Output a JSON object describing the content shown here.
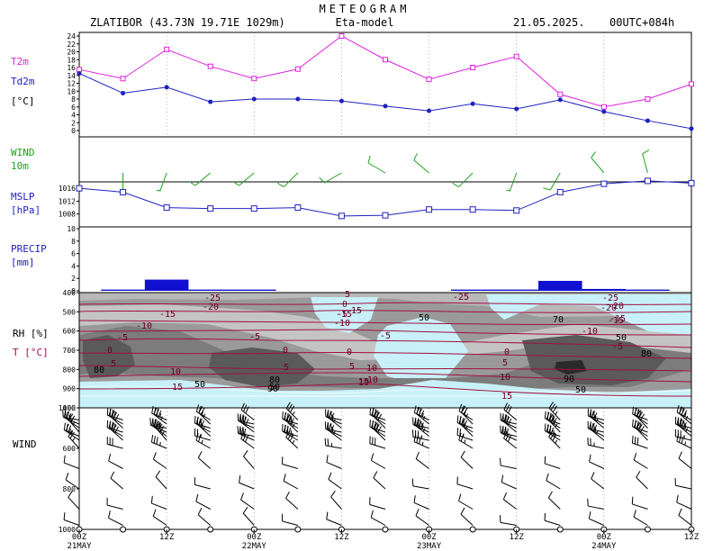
{
  "header": {
    "title": "METEOGRAM",
    "station": "ZLATIBOR (43.73N 19.71E  1029m)",
    "model": "Eta-model",
    "date": "21.05.2025.",
    "run": "00UTC+084h"
  },
  "labels": {
    "t2m": "T2m",
    "td2m": "Td2m",
    "t_unit": "[°C]",
    "wind": "WIND",
    "wind_unit": "10m",
    "mslp": "MSLP",
    "mslp_unit": "[hPa]",
    "precip": "PRECIP",
    "precip_unit": "[mm]",
    "rh": "RH [%]",
    "t": "T [°C]",
    "wind_profile": "WIND"
  },
  "colors": {
    "t2m": "#e020e0",
    "td2m": "#2020c0",
    "wind_barb": "#20a020",
    "mslp": "#2020c0",
    "precip": "#1010d0",
    "temp_contour": "#a01040",
    "rh_contour": "#606060",
    "moist_fill": "#c8f0f8"
  },
  "chart_data": [
    {
      "type": "line",
      "name": "temperature",
      "x": [
        0,
        6,
        12,
        18,
        24,
        30,
        36,
        42,
        48,
        54,
        60,
        66,
        72,
        78,
        84
      ],
      "ylim": [
        0,
        24
      ],
      "yticks": [
        0,
        2,
        4,
        6,
        8,
        10,
        12,
        14,
        16,
        18,
        20,
        22,
        24
      ],
      "series": [
        {
          "name": "T2m",
          "values": [
            15.5,
            13.2,
            20.6,
            16.3,
            13.2,
            15.6,
            24.0,
            18.0,
            13.0,
            16.0,
            18.8,
            9.2,
            6.0,
            8.0,
            11.8
          ]
        },
        {
          "name": "Td2m",
          "values": [
            14.5,
            9.5,
            11.0,
            7.3,
            8.0,
            8.0,
            7.5,
            6.2,
            5.0,
            6.8,
            5.5,
            7.8,
            4.8,
            2.5,
            0.5
          ]
        }
      ]
    },
    {
      "type": "wind_barbs",
      "name": "wind10m",
      "x": [
        6,
        12,
        18,
        24,
        30,
        36,
        42,
        48,
        54,
        60,
        66,
        72,
        78
      ],
      "direction_deg": [
        180,
        200,
        230,
        230,
        225,
        240,
        300,
        310,
        225,
        200,
        210,
        320,
        345
      ],
      "speed_kt": [
        5,
        5,
        10,
        10,
        10,
        10,
        10,
        10,
        10,
        5,
        10,
        10,
        10
      ]
    },
    {
      "type": "line",
      "name": "mslp",
      "x": [
        0,
        6,
        12,
        18,
        24,
        30,
        36,
        42,
        48,
        54,
        60,
        66,
        72,
        78,
        84
      ],
      "ylim": [
        1004,
        1018
      ],
      "yticks": [
        1008,
        1012,
        1016
      ],
      "series": [
        {
          "name": "MSLP",
          "values": [
            1016.0,
            1014.8,
            1010.0,
            1009.7,
            1009.7,
            1010.0,
            1007.4,
            1007.6,
            1009.4,
            1009.4,
            1009.1,
            1014.8,
            1017.4,
            1018.3,
            1017.6
          ]
        }
      ]
    },
    {
      "type": "bar",
      "name": "precip",
      "ylim": [
        0,
        10
      ],
      "yticks": [
        0,
        2,
        4,
        6,
        8,
        10
      ],
      "bars": [
        {
          "start": 3,
          "end": 9,
          "value": 0.2
        },
        {
          "start": 9,
          "end": 15,
          "value": 1.8
        },
        {
          "start": 15,
          "end": 21,
          "value": 0.2
        },
        {
          "start": 21,
          "end": 27,
          "value": 0.2
        },
        {
          "start": 51,
          "end": 57,
          "value": 0.2
        },
        {
          "start": 57,
          "end": 63,
          "value": 0.2
        },
        {
          "start": 63,
          "end": 69,
          "value": 1.6
        },
        {
          "start": 69,
          "end": 75,
          "value": 0.3
        },
        {
          "start": 75,
          "end": 81,
          "value": 0.2
        }
      ]
    },
    {
      "type": "contour",
      "name": "rh_temperature",
      "ylim": [
        1000,
        400
      ],
      "yticks": [
        400,
        500,
        600,
        700,
        800,
        900,
        1000
      ],
      "rh_labels": [
        "50",
        "80",
        "80",
        "90",
        "90",
        "50",
        "50",
        "70",
        "80",
        "50",
        "50"
      ],
      "t_labels": [
        "-25",
        "-20",
        "-15",
        "-10",
        "-5",
        "0",
        "5",
        "10",
        "15",
        "-25",
        "-20",
        "-15",
        "-10",
        "-5",
        "0",
        "5",
        "10",
        "15",
        "-5",
        "0",
        "5",
        "10",
        "15",
        "-5",
        "0",
        "5",
        "10",
        "-25",
        "-20",
        "-15",
        "-10",
        "-5",
        "0",
        "5",
        "10",
        "15",
        "-15",
        "-10"
      ]
    },
    {
      "type": "wind_barbs",
      "name": "wind_profile",
      "ylim": [
        1000,
        400
      ],
      "yticks": [
        400,
        600,
        800,
        1000
      ],
      "x": [
        0,
        6,
        12,
        18,
        24,
        30,
        36,
        42,
        48,
        54,
        60,
        66,
        72,
        78,
        84
      ]
    }
  ],
  "xaxis": {
    "ticks": [
      "00Z",
      "12Z",
      "00Z",
      "12Z",
      "00Z",
      "12Z",
      "00Z",
      "12Z"
    ],
    "days": [
      "21MAY",
      "22MAY",
      "23MAY",
      "24MAY"
    ]
  }
}
